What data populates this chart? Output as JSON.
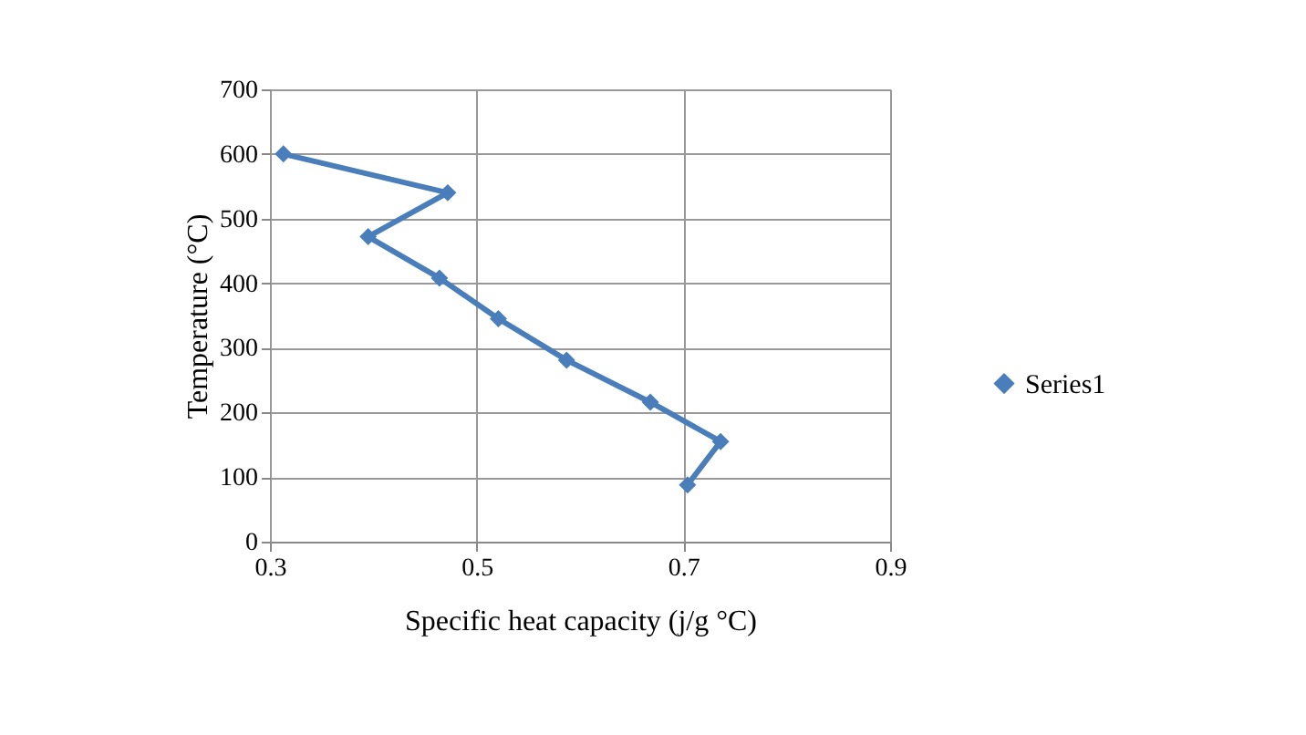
{
  "chart_data": {
    "type": "line",
    "xlabel": "Specific heat capacity (j/g  °C)",
    "ylabel": "Temperature (°C)",
    "x": [
      0.313,
      0.472,
      0.395,
      0.464,
      0.521,
      0.587,
      0.668,
      0.736,
      0.704
    ],
    "series": [
      {
        "name": "Series1",
        "color": "#4a7ebb",
        "values": [
          600,
          540,
          472,
          408,
          345,
          281,
          216,
          155,
          88
        ]
      }
    ],
    "xlim": [
      0.3,
      0.9
    ],
    "xticks": [
      0.3,
      0.5,
      0.7,
      0.9
    ],
    "ylim": [
      0,
      700
    ],
    "yticks": [
      0,
      100,
      200,
      300,
      400,
      500,
      600,
      700
    ],
    "grid": true,
    "legend": "right",
    "marker": "diamond",
    "line_style": "solid"
  }
}
